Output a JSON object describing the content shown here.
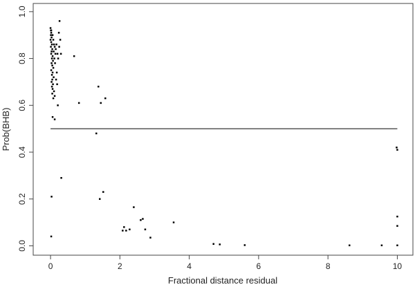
{
  "chart_data": {
    "type": "scatter",
    "xlabel": "Fractional distance residual",
    "ylabel": "Prob(BHB)",
    "xlim": [
      -0.5,
      10.45
    ],
    "ylim": [
      -0.04,
      1.035
    ],
    "xticks": [
      0,
      2,
      4,
      6,
      8,
      10
    ],
    "xtick_labels": [
      "0",
      "2",
      "4",
      "6",
      "8",
      "10"
    ],
    "yticks": [
      0.0,
      0.2,
      0.4,
      0.6,
      0.8,
      1.0
    ],
    "ytick_labels": [
      "0.0",
      "0.2",
      "0.4",
      "0.6",
      "0.8",
      "1.0"
    ],
    "reference_line": {
      "y": 0.5,
      "x_from": 0,
      "x_to": 10
    },
    "grid": false,
    "legend": "none",
    "point_color": "#000000",
    "series": [
      {
        "points": [
          [
            0.0,
            0.93
          ],
          [
            0.01,
            0.92
          ],
          [
            0.02,
            0.91
          ],
          [
            0.01,
            0.9
          ],
          [
            0.03,
            0.89
          ],
          [
            0.0,
            0.88
          ],
          [
            0.02,
            0.87
          ],
          [
            0.04,
            0.86
          ],
          [
            0.01,
            0.85
          ],
          [
            0.05,
            0.84
          ],
          [
            0.03,
            0.83
          ],
          [
            0.02,
            0.82
          ],
          [
            0.06,
            0.81
          ],
          [
            0.04,
            0.8
          ],
          [
            0.07,
            0.79
          ],
          [
            0.03,
            0.78
          ],
          [
            0.05,
            0.77
          ],
          [
            0.08,
            0.76
          ],
          [
            0.02,
            0.75
          ],
          [
            0.06,
            0.74
          ],
          [
            0.04,
            0.73
          ],
          [
            0.09,
            0.72
          ],
          [
            0.05,
            0.71
          ],
          [
            0.03,
            0.7
          ],
          [
            0.07,
            0.69
          ],
          [
            0.04,
            0.68
          ],
          [
            0.06,
            0.67
          ],
          [
            0.1,
            0.66
          ],
          [
            0.05,
            0.65
          ],
          [
            0.12,
            0.64
          ],
          [
            0.08,
            0.63
          ],
          [
            0.02,
            0.92
          ],
          [
            0.06,
            0.9
          ],
          [
            0.08,
            0.88
          ],
          [
            0.1,
            0.86
          ],
          [
            0.12,
            0.85
          ],
          [
            0.09,
            0.83
          ],
          [
            0.14,
            0.82
          ],
          [
            0.11,
            0.8
          ],
          [
            0.13,
            0.78
          ],
          [
            0.15,
            0.84
          ],
          [
            0.17,
            0.86
          ],
          [
            0.2,
            0.82
          ],
          [
            0.22,
            0.8
          ],
          [
            0.25,
            0.85
          ],
          [
            0.24,
            0.91
          ],
          [
            0.26,
            0.96
          ],
          [
            0.28,
            0.88
          ],
          [
            0.3,
            0.82
          ],
          [
            0.18,
            0.74
          ],
          [
            0.16,
            0.71
          ],
          [
            0.19,
            0.69
          ],
          [
            0.21,
            0.6
          ],
          [
            0.68,
            0.81
          ],
          [
            0.82,
            0.61
          ],
          [
            0.06,
            0.55
          ],
          [
            0.12,
            0.54
          ],
          [
            1.38,
            0.68
          ],
          [
            1.45,
            0.61
          ],
          [
            1.58,
            0.63
          ],
          [
            1.32,
            0.48
          ],
          [
            0.03,
            0.21
          ],
          [
            0.31,
            0.29
          ],
          [
            0.02,
            0.04
          ],
          [
            1.42,
            0.2
          ],
          [
            1.52,
            0.23
          ],
          [
            2.08,
            0.065
          ],
          [
            2.12,
            0.08
          ],
          [
            2.18,
            0.065
          ],
          [
            2.28,
            0.07
          ],
          [
            2.4,
            0.165
          ],
          [
            2.6,
            0.11
          ],
          [
            2.66,
            0.115
          ],
          [
            2.73,
            0.07
          ],
          [
            2.88,
            0.035
          ],
          [
            3.55,
            0.1
          ],
          [
            4.7,
            0.008
          ],
          [
            4.88,
            0.006
          ],
          [
            5.6,
            0.003
          ],
          [
            8.62,
            0.002
          ],
          [
            9.55,
            0.002
          ],
          [
            9.98,
            0.42
          ],
          [
            10.0,
            0.41
          ],
          [
            10.0,
            0.125
          ],
          [
            10.0,
            0.085
          ],
          [
            10.0,
            0.002
          ]
        ]
      }
    ]
  }
}
